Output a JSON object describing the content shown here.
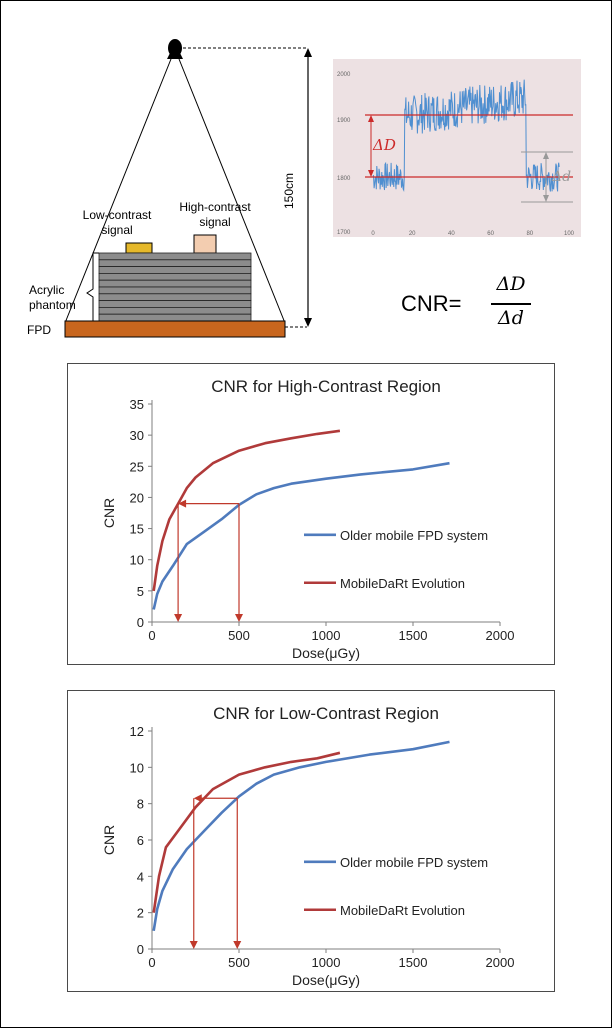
{
  "setup": {
    "low_contrast_label": [
      "Low-contrast",
      "signal"
    ],
    "high_contrast_label": [
      "High-contrast",
      "signal"
    ],
    "phantom_label": [
      "Acrylic",
      "phantom"
    ],
    "fpd_label": "FPD",
    "distance_label": "150cm",
    "colors": {
      "fpd": "#c8661e",
      "low_signal": "#e5b82a",
      "high_signal": "#f3cdb0",
      "phantom": "#8c8c8c"
    }
  },
  "signal_plot": {
    "y_ticks": [
      "2000",
      "1900",
      "1800",
      "1700"
    ],
    "x_ticks": [
      "0",
      "20",
      "40",
      "60",
      "80",
      "100"
    ],
    "delta_D": "ΔD",
    "delta_d": "Δd",
    "colors": {
      "background": "#ede1e3",
      "trace": "#4f8fd0",
      "level": "#cc2a2a"
    }
  },
  "formula": {
    "lhs": "CNR=",
    "numerator": "ΔD",
    "denominator": "Δd"
  },
  "chart_data": [
    {
      "type": "line",
      "title": "CNR for High-Contrast Region",
      "xlabel": "Dose(μGy)",
      "ylabel": "CNR",
      "xlim": [
        0,
        2000
      ],
      "ylim": [
        0,
        35
      ],
      "x_ticks": [
        0,
        500,
        1000,
        1500,
        2000
      ],
      "y_ticks": [
        0,
        5,
        10,
        15,
        20,
        25,
        30,
        35
      ],
      "legend_position": "right",
      "series": [
        {
          "name": "Older mobile FPD system",
          "color": "#4f7bbd",
          "points": [
            [
              10,
              2
            ],
            [
              30,
              4.5
            ],
            [
              60,
              6.5
            ],
            [
              120,
              9
            ],
            [
              200,
              12.5
            ],
            [
              300,
              14.5
            ],
            [
              400,
              16.5
            ],
            [
              500,
              18.8
            ],
            [
              600,
              20.5
            ],
            [
              700,
              21.5
            ],
            [
              800,
              22.2
            ],
            [
              1000,
              23
            ],
            [
              1200,
              23.7
            ],
            [
              1500,
              24.5
            ],
            [
              1710,
              25.5
            ]
          ]
        },
        {
          "name": "MobileDaRt Evolution",
          "color": "#b03a3a",
          "points": [
            [
              10,
              5
            ],
            [
              30,
              9
            ],
            [
              60,
              13
            ],
            [
              100,
              16.5
            ],
            [
              150,
              19
            ],
            [
              200,
              21.5
            ],
            [
              250,
              23.2
            ],
            [
              350,
              25.5
            ],
            [
              500,
              27.5
            ],
            [
              650,
              28.7
            ],
            [
              800,
              29.5
            ],
            [
              950,
              30.2
            ],
            [
              1080,
              30.7
            ]
          ]
        }
      ],
      "annotation_arrows": {
        "cnr_level": 19,
        "doses": [
          150,
          500
        ]
      }
    },
    {
      "type": "line",
      "title": "CNR for Low-Contrast Region",
      "xlabel": "Dose(μGy)",
      "ylabel": "CNR",
      "xlim": [
        0,
        2000
      ],
      "ylim": [
        0,
        12
      ],
      "x_ticks": [
        0,
        500,
        1000,
        1500,
        2000
      ],
      "y_ticks": [
        0,
        2,
        4,
        6,
        8,
        10,
        12
      ],
      "legend_position": "right",
      "series": [
        {
          "name": "Older mobile FPD system",
          "color": "#4f7bbd",
          "points": [
            [
              10,
              1
            ],
            [
              30,
              2.2
            ],
            [
              60,
              3.2
            ],
            [
              120,
              4.4
            ],
            [
              200,
              5.5
            ],
            [
              300,
              6.5
            ],
            [
              400,
              7.5
            ],
            [
              500,
              8.4
            ],
            [
              600,
              9.1
            ],
            [
              700,
              9.6
            ],
            [
              850,
              10
            ],
            [
              1000,
              10.3
            ],
            [
              1250,
              10.7
            ],
            [
              1500,
              11
            ],
            [
              1710,
              11.4
            ]
          ]
        },
        {
          "name": "MobileDaRt Evolution",
          "color": "#b03a3a",
          "points": [
            [
              10,
              2
            ],
            [
              40,
              4
            ],
            [
              80,
              5.6
            ],
            [
              150,
              6.5
            ],
            [
              250,
              7.8
            ],
            [
              350,
              8.8
            ],
            [
              500,
              9.6
            ],
            [
              650,
              10
            ],
            [
              800,
              10.3
            ],
            [
              950,
              10.5
            ],
            [
              1080,
              10.8
            ]
          ]
        }
      ],
      "annotation_arrows": {
        "cnr_level": 8.3,
        "doses": [
          240,
          490
        ]
      }
    }
  ]
}
